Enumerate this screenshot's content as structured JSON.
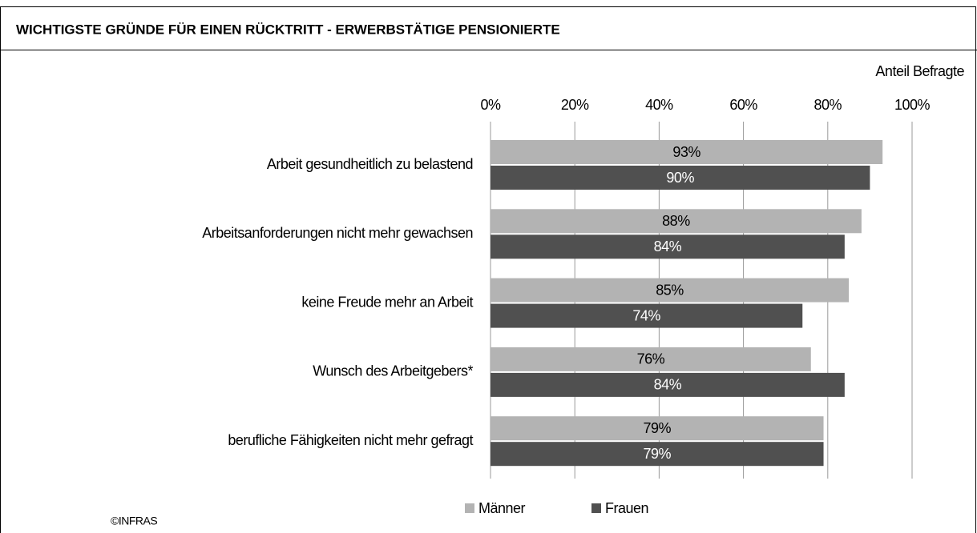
{
  "chart_data": {
    "type": "barh",
    "title": "WICHTIGSTE GRÜNDE FÜR EINEN RÜCKTRITT - ERWERBSTÄTIGE PENSIONIERTE",
    "x_label": "Anteil Befragte",
    "categories": [
      "Arbeit gesundheitlich zu belastend",
      "Arbeitsanforderungen nicht mehr gewachsen",
      "keine Freude mehr an Arbeit",
      "Wunsch des Arbeitgebers*",
      "berufliche Fähigkeiten nicht mehr gefragt"
    ],
    "series": [
      {
        "name": "Männer",
        "color": "#b3b3b3",
        "values": [
          93,
          88,
          85,
          76,
          79
        ],
        "value_labels": [
          "93%",
          "88%",
          "85%",
          "76%",
          "79%"
        ]
      },
      {
        "name": "Frauen",
        "color": "#505050",
        "values": [
          90,
          84,
          74,
          84,
          79
        ],
        "value_labels": [
          "90%",
          "84%",
          "74%",
          "84%",
          "79%"
        ]
      }
    ],
    "xlim": [
      0,
      100
    ],
    "xticks": [
      {
        "value": 0,
        "label": "0%"
      },
      {
        "value": 20,
        "label": "20%"
      },
      {
        "value": 40,
        "label": "40%"
      },
      {
        "value": 60,
        "label": "60%"
      },
      {
        "value": 80,
        "label": "80%"
      },
      {
        "value": 100,
        "label": "100%"
      }
    ],
    "grid": true,
    "source": "©INFRAS"
  }
}
